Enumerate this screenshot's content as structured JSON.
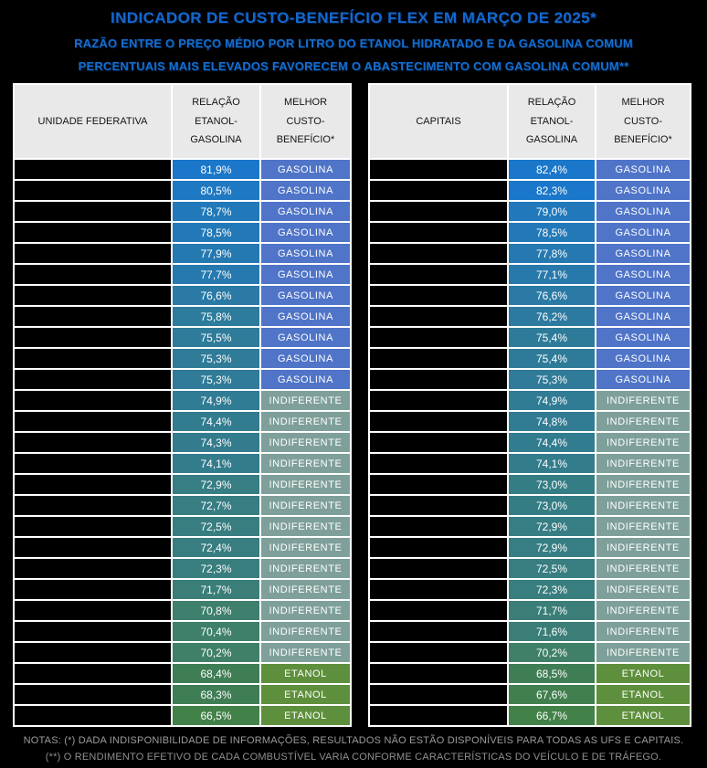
{
  "title_block": {
    "title": "INDICADOR DE CUSTO-BENEFÍCIO FLEX EM MARÇO DE 2025*",
    "subtitle1": "RAZÃO ENTRE O PREÇO MÉDIO POR LITRO DO ETANOL HIDRATADO E DA GASOLINA COMUM",
    "subtitle2": "PERCENTUAIS MAIS ELEVADOS FAVORECEM O ABASTECIMENTO COM GASOLINA COMUM**",
    "title_color": "#1468cd",
    "subtitle_color": "#146fd0"
  },
  "verdict_colors": {
    "GASOLINA": "#4f74c8",
    "INDIFERENTE": "#7fa09a",
    "ETANOL": "#5e8f3c"
  },
  "chart_data": [
    {
      "type": "table",
      "name": "unidades-federativas",
      "columns": [
        "UNIDADE FEDERATIVA",
        "RELAÇÃO ETANOL-GASOLINA",
        "MELHOR CUSTO-BENEFÍCIO*"
      ],
      "rows": [
        {
          "name": "",
          "ratio": "81,9%",
          "ratio_color": "#1b77c9",
          "verdict": "GASOLINA"
        },
        {
          "name": "",
          "ratio": "80,5%",
          "ratio_color": "#1e78c2",
          "verdict": "GASOLINA"
        },
        {
          "name": "",
          "ratio": "78,7%",
          "ratio_color": "#2279b9",
          "verdict": "GASOLINA"
        },
        {
          "name": "",
          "ratio": "78,5%",
          "ratio_color": "#2379b7",
          "verdict": "GASOLINA"
        },
        {
          "name": "",
          "ratio": "77,9%",
          "ratio_color": "#2579b1",
          "verdict": "GASOLINA"
        },
        {
          "name": "",
          "ratio": "77,7%",
          "ratio_color": "#2679af",
          "verdict": "GASOLINA"
        },
        {
          "name": "",
          "ratio": "76,6%",
          "ratio_color": "#2a7aa5",
          "verdict": "GASOLINA"
        },
        {
          "name": "",
          "ratio": "75,8%",
          "ratio_color": "#2d7b9d",
          "verdict": "GASOLINA"
        },
        {
          "name": "",
          "ratio": "75,5%",
          "ratio_color": "#2e7b9a",
          "verdict": "GASOLINA"
        },
        {
          "name": "",
          "ratio": "75,3%",
          "ratio_color": "#2f7b98",
          "verdict": "GASOLINA"
        },
        {
          "name": "",
          "ratio": "75,3%",
          "ratio_color": "#2f7b98",
          "verdict": "GASOLINA"
        },
        {
          "name": "",
          "ratio": "74,9%",
          "ratio_color": "#307c94",
          "verdict": "INDIFERENTE"
        },
        {
          "name": "",
          "ratio": "74,4%",
          "ratio_color": "#327c8f",
          "verdict": "INDIFERENTE"
        },
        {
          "name": "",
          "ratio": "74,3%",
          "ratio_color": "#337c8e",
          "verdict": "INDIFERENTE"
        },
        {
          "name": "",
          "ratio": "74,1%",
          "ratio_color": "#337c8c",
          "verdict": "INDIFERENTE"
        },
        {
          "name": "",
          "ratio": "72,9%",
          "ratio_color": "#367d84",
          "verdict": "INDIFERENTE"
        },
        {
          "name": "",
          "ratio": "72,7%",
          "ratio_color": "#377d82",
          "verdict": "INDIFERENTE"
        },
        {
          "name": "",
          "ratio": "72,5%",
          "ratio_color": "#387d80",
          "verdict": "INDIFERENTE"
        },
        {
          "name": "",
          "ratio": "72,4%",
          "ratio_color": "#387d7f",
          "verdict": "INDIFERENTE"
        },
        {
          "name": "",
          "ratio": "72,3%",
          "ratio_color": "#397e7e",
          "verdict": "INDIFERENTE"
        },
        {
          "name": "",
          "ratio": "71,7%",
          "ratio_color": "#3b7e78",
          "verdict": "INDIFERENTE"
        },
        {
          "name": "",
          "ratio": "70,8%",
          "ratio_color": "#3e7f6d",
          "verdict": "INDIFERENTE"
        },
        {
          "name": "",
          "ratio": "70,4%",
          "ratio_color": "#3f806a",
          "verdict": "INDIFERENTE"
        },
        {
          "name": "",
          "ratio": "70,2%",
          "ratio_color": "#408068",
          "verdict": "INDIFERENTE"
        },
        {
          "name": "",
          "ratio": "68,4%",
          "ratio_color": "#3f7d55",
          "verdict": "ETANOL"
        },
        {
          "name": "",
          "ratio": "68,3%",
          "ratio_color": "#3f7d54",
          "verdict": "ETANOL"
        },
        {
          "name": "",
          "ratio": "66,5%",
          "ratio_color": "#428148",
          "verdict": "ETANOL"
        }
      ]
    },
    {
      "type": "table",
      "name": "capitais",
      "columns": [
        "CAPITAIS",
        "RELAÇÃO ETANOL-GASOLINA",
        "MELHOR CUSTO-BENEFÍCIO*"
      ],
      "rows": [
        {
          "name": "",
          "ratio": "82,4%",
          "ratio_color": "#1a77ca",
          "verdict": "GASOLINA"
        },
        {
          "name": "",
          "ratio": "82,3%",
          "ratio_color": "#1a77ca",
          "verdict": "GASOLINA"
        },
        {
          "name": "",
          "ratio": "79,0%",
          "ratio_color": "#2179bb",
          "verdict": "GASOLINA"
        },
        {
          "name": "",
          "ratio": "78,5%",
          "ratio_color": "#2379b7",
          "verdict": "GASOLINA"
        },
        {
          "name": "",
          "ratio": "77,8%",
          "ratio_color": "#2579b0",
          "verdict": "GASOLINA"
        },
        {
          "name": "",
          "ratio": "77,1%",
          "ratio_color": "#2879ab",
          "verdict": "GASOLINA"
        },
        {
          "name": "",
          "ratio": "76,6%",
          "ratio_color": "#2a7aa5",
          "verdict": "GASOLINA"
        },
        {
          "name": "",
          "ratio": "76,2%",
          "ratio_color": "#2c7aa0",
          "verdict": "GASOLINA"
        },
        {
          "name": "",
          "ratio": "75,4%",
          "ratio_color": "#2e7b99",
          "verdict": "GASOLINA"
        },
        {
          "name": "",
          "ratio": "75,4%",
          "ratio_color": "#2e7b99",
          "verdict": "GASOLINA"
        },
        {
          "name": "",
          "ratio": "75,3%",
          "ratio_color": "#2f7b98",
          "verdict": "GASOLINA"
        },
        {
          "name": "",
          "ratio": "74,9%",
          "ratio_color": "#307c94",
          "verdict": "INDIFERENTE"
        },
        {
          "name": "",
          "ratio": "74,8%",
          "ratio_color": "#317c93",
          "verdict": "INDIFERENTE"
        },
        {
          "name": "",
          "ratio": "74,4%",
          "ratio_color": "#327c8f",
          "verdict": "INDIFERENTE"
        },
        {
          "name": "",
          "ratio": "74,1%",
          "ratio_color": "#337c8c",
          "verdict": "INDIFERENTE"
        },
        {
          "name": "",
          "ratio": "73,0%",
          "ratio_color": "#357d85",
          "verdict": "INDIFERENTE"
        },
        {
          "name": "",
          "ratio": "73,0%",
          "ratio_color": "#357d85",
          "verdict": "INDIFERENTE"
        },
        {
          "name": "",
          "ratio": "72,9%",
          "ratio_color": "#367d84",
          "verdict": "INDIFERENTE"
        },
        {
          "name": "",
          "ratio": "72,9%",
          "ratio_color": "#367d84",
          "verdict": "INDIFERENTE"
        },
        {
          "name": "",
          "ratio": "72,5%",
          "ratio_color": "#387d80",
          "verdict": "INDIFERENTE"
        },
        {
          "name": "",
          "ratio": "72,3%",
          "ratio_color": "#397e7e",
          "verdict": "INDIFERENTE"
        },
        {
          "name": "",
          "ratio": "71,7%",
          "ratio_color": "#3b7e78",
          "verdict": "INDIFERENTE"
        },
        {
          "name": "",
          "ratio": "71,6%",
          "ratio_color": "#3b7e77",
          "verdict": "INDIFERENTE"
        },
        {
          "name": "",
          "ratio": "70,2%",
          "ratio_color": "#408068",
          "verdict": "INDIFERENTE"
        },
        {
          "name": "",
          "ratio": "68,5%",
          "ratio_color": "#3f7d55",
          "verdict": "ETANOL"
        },
        {
          "name": "",
          "ratio": "67,6%",
          "ratio_color": "#417f4e",
          "verdict": "ETANOL"
        },
        {
          "name": "",
          "ratio": "66,7%",
          "ratio_color": "#428147",
          "verdict": "ETANOL"
        }
      ]
    }
  ],
  "notes": {
    "line1": "NOTAS:  (*) DADA INDISPONIBILIDADE DE INFORMAÇÕES, RESULTADOS NÃO ESTÃO DISPONÍVEIS PARA TODAS AS UFS E CAPITAIS.",
    "line2": "(**) O RENDIMENTO EFETIVO DE CADA COMBUSTÍVEL VARIA CONFORME CARACTERÍSTICAS DO VEÍCULO E DE TRÁFEGO."
  }
}
